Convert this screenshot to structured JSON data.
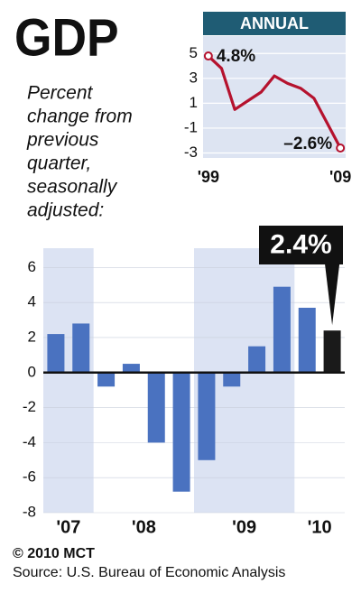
{
  "chart_data": [
    {
      "type": "bar",
      "title": "GDP",
      "subtitle_lines": [
        "Percent",
        "change from",
        "previous",
        "quarter,",
        "seasonally",
        "adjusted:"
      ],
      "categories": [
        "'07",
        "'07",
        "'08",
        "'08",
        "'08",
        "'08",
        "'09",
        "'09",
        "'09",
        "'09",
        "'10",
        "'10"
      ],
      "values": [
        2.2,
        2.8,
        -0.8,
        0.5,
        -4.0,
        -6.8,
        -5.0,
        -0.8,
        1.5,
        4.9,
        3.7,
        2.4
      ],
      "value_labels": [
        null,
        null,
        null,
        null,
        null,
        null,
        null,
        null,
        null,
        null,
        null,
        "2.4%"
      ],
      "colors": [
        "#4a72c0",
        "#4a72c0",
        "#4a72c0",
        "#4a72c0",
        "#4a72c0",
        "#4a72c0",
        "#4a72c0",
        "#4a72c0",
        "#4a72c0",
        "#4a72c0",
        "#4a72c0",
        "#1a1a1a"
      ],
      "ylim": [
        -8,
        7.1
      ],
      "yticks": [
        -8,
        -6,
        -4,
        -2,
        0,
        2,
        4,
        6
      ],
      "grid": true
    },
    {
      "type": "line",
      "title": "ANNUAL",
      "x": [
        1999,
        2000,
        2001,
        2002,
        2003,
        2004,
        2005,
        2006,
        2007,
        2008,
        2009
      ],
      "values": [
        4.8,
        3.8,
        0.5,
        1.2,
        1.9,
        3.2,
        2.6,
        2.2,
        1.4,
        -0.6,
        -2.6
      ],
      "value_labels": [
        "4.8%",
        null,
        null,
        null,
        null,
        null,
        null,
        null,
        null,
        null,
        "–2.6%"
      ],
      "color": "#b5122e",
      "xlim": [
        1998.6,
        2009.4
      ],
      "xticks": [
        {
          "value": 1999,
          "label": "'99"
        },
        {
          "value": 2009,
          "label": "'09"
        }
      ],
      "ylim": [
        -3.4,
        6.4
      ],
      "yticks": [
        -3,
        -1,
        1,
        3,
        5
      ],
      "grid": true
    }
  ],
  "footer": {
    "credit": "© 2010 MCT",
    "source": "Source: U.S. Bureau of Economic Analysis"
  }
}
